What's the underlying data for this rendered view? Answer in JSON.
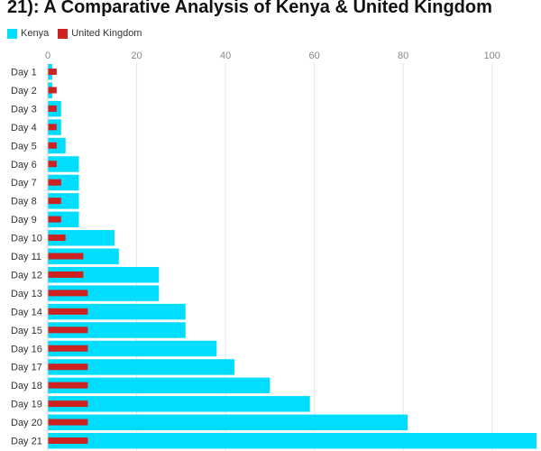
{
  "title": "21): A Comparative Analysis of Kenya & United Kingdom",
  "chart_data": {
    "type": "bar",
    "orientation": "horizontal",
    "title": "21): A Comparative Analysis of Kenya & United Kingdom",
    "categories": [
      "Day 1",
      "Day 2",
      "Day 3",
      "Day 4",
      "Day 5",
      "Day 6",
      "Day 7",
      "Day 8",
      "Day 9",
      "Day 10",
      "Day 11",
      "Day 12",
      "Day 13",
      "Day 14",
      "Day 15",
      "Day 16",
      "Day 17",
      "Day 18",
      "Day 19",
      "Day 20",
      "Day 21"
    ],
    "series": [
      {
        "name": "Kenya",
        "color": "#00DDFF",
        "values": [
          1,
          1,
          3,
          3,
          4,
          7,
          7,
          7,
          7,
          15,
          16,
          25,
          25,
          31,
          31,
          38,
          42,
          50,
          59,
          81,
          110
        ]
      },
      {
        "name": "United Kingdom",
        "color": "#CC2222",
        "values": [
          2,
          2,
          2,
          2,
          2,
          2,
          3,
          3,
          3,
          4,
          8,
          8,
          9,
          9,
          9,
          9,
          9,
          9,
          9,
          9,
          9
        ]
      }
    ],
    "xlim": [
      0,
      110
    ],
    "xticks": [
      0,
      20,
      40,
      60,
      80,
      100
    ],
    "grid": true,
    "legend_position": "top-left"
  }
}
